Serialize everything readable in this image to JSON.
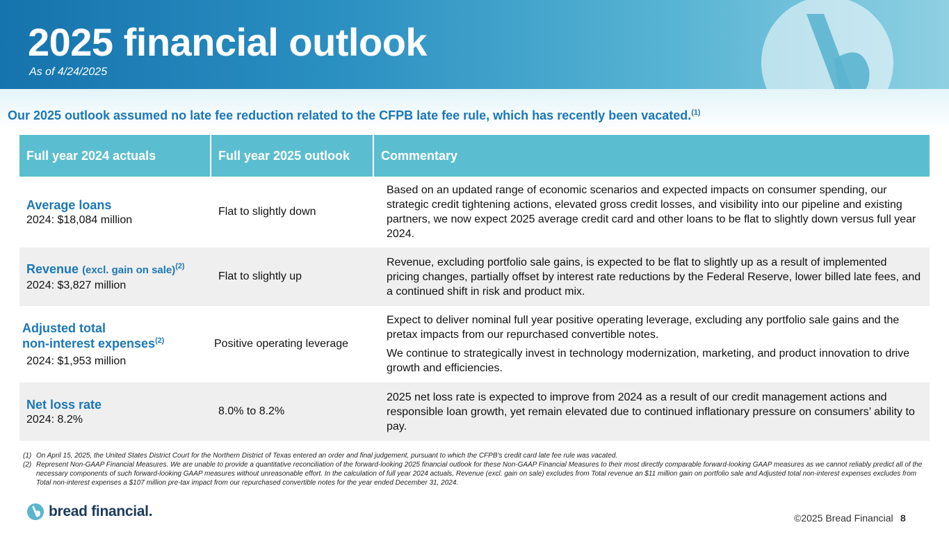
{
  "header": {
    "title": "2025 financial outlook",
    "subtitle": "As of 4/24/2025"
  },
  "headline": {
    "text": "Our 2025 outlook assumed no late fee reduction related to the CFPB late fee rule, which has recently been vacated.",
    "sup": "(1)"
  },
  "table": {
    "headers": [
      "Full year 2024 actuals",
      "Full year 2025 outlook",
      "Commentary"
    ],
    "rows": [
      {
        "metric": "Average loans",
        "metric_note": "",
        "metric_sup": "",
        "actual": "2024: $18,084 million",
        "outlook": "Flat to slightly down",
        "commentary": [
          "Based on an updated range of economic scenarios and expected impacts on consumer spending, our strategic credit tightening actions, elevated gross credit losses, and visibility into our pipeline and existing partners, we now expect 2025 average credit card and other loans to be flat to slightly down versus full year 2024."
        ]
      },
      {
        "metric": "Revenue",
        "metric_note": "(excl. gain on sale)",
        "metric_sup": "(2)",
        "actual": "2024: $3,827 million",
        "outlook": "Flat to slightly up",
        "commentary": [
          "Revenue, excluding portfolio sale gains, is expected to be flat to slightly up as a result of implemented pricing changes, partially offset by interest rate reductions by the Federal Reserve, lower billed late fees, and a continued shift in risk and product mix."
        ]
      },
      {
        "metric": "Adjusted total",
        "metric_line2": "non-interest expenses",
        "metric_sup": "(2)",
        "actual": "2024: $1,953 million",
        "outlook": "Positive operating leverage",
        "commentary": [
          "Expect to deliver nominal full year positive operating leverage, excluding any portfolio sale gains and the pretax impacts from our repurchased convertible notes.",
          "We continue to strategically invest in technology modernization, marketing, and product innovation to drive growth and efficiencies."
        ]
      },
      {
        "metric": "Net loss rate",
        "metric_note": "",
        "metric_sup": "",
        "actual": "2024: 8.2%",
        "outlook": "8.0% to 8.2%",
        "commentary": [
          "2025 net loss rate is expected to improve from 2024 as a result of our credit management actions and responsible loan growth, yet remain elevated due to continued inflationary pressure on consumers’ ability to pay."
        ]
      }
    ]
  },
  "footnotes": [
    {
      "num": "(1)",
      "text": "On April 15, 2025, the United States District Court for the Northern District of Texas entered an order and final judgement, pursuant to which the CFPB’s credit card late fee rule was vacated."
    },
    {
      "num": "(2)",
      "text": "Represent Non-GAAP Financial Measures.  We are unable to provide a quantitative reconciliation of the forward-looking 2025 financial outlook for these Non-GAAP Financial Measures to their most directly comparable forward-looking GAAP measures as we cannot reliably predict all of the necessary components of such forward-looking GAAP measures without unreasonable effort. In the calculation of full year 2024 actuals, Revenue (excl. gain on sale) excludes from Total revenue an $11 million gain on portfolio sale and Adjusted total non-interest expenses excludes from Total non-interest expenses a $107 million pre-tax impact from our repurchased convertible notes for the year ended December 31, 2024."
    }
  ],
  "footer": {
    "brand": "bread financial.",
    "copyright": "©2025 Bread Financial",
    "page": "8"
  },
  "colors": {
    "accent": "#1b77b8",
    "table_header": "#5bbed0",
    "row_shade": "#efefef",
    "brand_navy": "#1c3a5c"
  }
}
